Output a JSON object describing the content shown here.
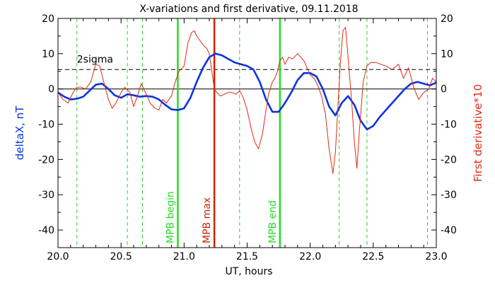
{
  "chart_data": {
    "type": "line",
    "title": "X-variations and first derivative, 09.11.2018",
    "xlabel": "UT, hours",
    "ylabel_left": "deltaX, nT",
    "ylabel_right": "First derivative*10",
    "xlim": [
      20.0,
      23.0
    ],
    "ylim": [
      -45,
      20
    ],
    "x_ticks": [
      "20.0",
      "20.5",
      "21.0",
      "21.5",
      "22.0",
      "22.5",
      "23.0"
    ],
    "y_ticks": [
      "20",
      "10",
      "0",
      "-10",
      "-20",
      "-30",
      "-40"
    ],
    "grid": false,
    "colors": {
      "deltaX": "#0b34e0",
      "derivative": "#e02a12",
      "mpb_lines": "#22dd22",
      "mpb_max": "#cc2200",
      "dashed_markers": "#33cc33",
      "sigma_line": "#000000"
    },
    "sigma": {
      "label": "2sigma",
      "value": 5.5
    },
    "zero_line": 0,
    "vertical_markers": [
      {
        "x": 20.95,
        "label": "MPB begin",
        "style": "solid",
        "color_key": "mpb_lines"
      },
      {
        "x": 21.24,
        "label": "MPB max",
        "style": "solid",
        "color_key": "mpb_max"
      },
      {
        "x": 21.76,
        "label": "MPB end",
        "style": "solid",
        "color_key": "mpb_lines"
      }
    ],
    "dashed_verticals": [
      20.15,
      20.55,
      20.67,
      21.44,
      22.23,
      22.45,
      22.93
    ],
    "series": [
      {
        "key": "deltaX",
        "x": [
          20.0,
          20.05,
          20.1,
          20.15,
          20.2,
          20.25,
          20.3,
          20.35,
          20.4,
          20.45,
          20.5,
          20.55,
          20.6,
          20.65,
          20.7,
          20.75,
          20.8,
          20.85,
          20.9,
          20.95,
          21.0,
          21.05,
          21.1,
          21.15,
          21.2,
          21.25,
          21.3,
          21.35,
          21.4,
          21.45,
          21.5,
          21.55,
          21.6,
          21.65,
          21.7,
          21.75,
          21.8,
          21.85,
          21.9,
          21.95,
          22.0,
          22.05,
          22.1,
          22.15,
          22.2,
          22.25,
          22.3,
          22.35,
          22.4,
          22.45,
          22.5,
          22.55,
          22.6,
          22.65,
          22.7,
          22.75,
          22.8,
          22.85,
          22.9,
          22.95,
          23.0
        ],
        "y": [
          -1.0,
          -2.2,
          -3.0,
          -2.8,
          -2.2,
          -0.5,
          1.2,
          1.5,
          0.0,
          -1.8,
          -2.5,
          -1.5,
          -1.8,
          -2.2,
          -2.0,
          -2.2,
          -3.0,
          -4.5,
          -5.8,
          -6.0,
          -5.5,
          -2.5,
          2.0,
          6.0,
          9.0,
          10.0,
          9.5,
          8.5,
          7.5,
          7.0,
          6.5,
          5.5,
          2.0,
          -3.0,
          -6.5,
          -6.5,
          -4.0,
          -1.0,
          2.5,
          4.5,
          4.5,
          3.5,
          0.0,
          -5.0,
          -7.5,
          -4.0,
          -2.0,
          -4.5,
          -9.0,
          -11.5,
          -10.5,
          -8.0,
          -6.0,
          -4.0,
          -2.0,
          0.0,
          1.5,
          2.0,
          1.5,
          1.0,
          1.8
        ]
      },
      {
        "key": "derivative",
        "x": [
          20.0,
          20.04,
          20.08,
          20.12,
          20.15,
          20.18,
          20.22,
          20.26,
          20.3,
          20.33,
          20.37,
          20.4,
          20.43,
          20.46,
          20.5,
          20.53,
          20.57,
          20.6,
          20.63,
          20.66,
          20.7,
          20.73,
          20.77,
          20.8,
          20.83,
          20.86,
          20.9,
          20.93,
          20.96,
          21.0,
          21.03,
          21.06,
          21.08,
          21.1,
          21.12,
          21.15,
          21.18,
          21.2,
          21.22,
          21.24,
          21.26,
          21.29,
          21.32,
          21.35,
          21.38,
          21.41,
          21.44,
          21.47,
          21.5,
          21.53,
          21.56,
          21.59,
          21.62,
          21.65,
          21.67,
          21.7,
          21.72,
          21.74,
          21.76,
          21.78,
          21.8,
          21.83,
          21.86,
          21.9,
          21.95,
          22.0,
          22.03,
          22.06,
          22.09,
          22.12,
          22.15,
          22.18,
          22.2,
          22.22,
          22.24,
          22.26,
          22.28,
          22.3,
          22.33,
          22.35,
          22.37,
          22.39,
          22.42,
          22.45,
          22.48,
          22.52,
          22.56,
          22.6,
          22.65,
          22.7,
          22.74,
          22.78,
          22.82,
          22.86,
          22.9,
          22.94,
          22.97,
          23.0
        ],
        "y": [
          -1.0,
          -3.0,
          -4.0,
          -1.0,
          0.5,
          0.5,
          0.0,
          2.0,
          7.0,
          6.5,
          1.0,
          -3.0,
          -5.5,
          -4.0,
          -1.0,
          0.5,
          -1.0,
          -5.0,
          -2.0,
          1.5,
          -1.5,
          -4.0,
          -5.5,
          -6.0,
          -3.0,
          -4.0,
          -2.0,
          2.0,
          5.0,
          6.5,
          13.0,
          16.0,
          16.5,
          15.0,
          14.0,
          12.5,
          11.5,
          10.0,
          5.0,
          0.0,
          -1.0,
          -2.0,
          -1.5,
          -1.0,
          -1.0,
          -1.5,
          -0.5,
          -2.5,
          -6.0,
          -11.0,
          -15.0,
          -17.0,
          -13.0,
          -6.0,
          -1.5,
          2.0,
          3.0,
          5.0,
          8.0,
          9.0,
          7.0,
          9.0,
          8.5,
          10.0,
          8.0,
          4.0,
          3.0,
          1.0,
          -2.0,
          -7.0,
          -17.0,
          -24.0,
          -18.0,
          -5.0,
          8.0,
          16.5,
          17.5,
          9.0,
          -4.0,
          -15.0,
          -22.5,
          -12.0,
          2.0,
          6.5,
          7.5,
          7.5,
          7.0,
          6.5,
          5.5,
          7.0,
          3.0,
          6.0,
          0.5,
          -3.0,
          -1.0,
          0.0,
          3.0,
          2.0
        ]
      }
    ]
  }
}
